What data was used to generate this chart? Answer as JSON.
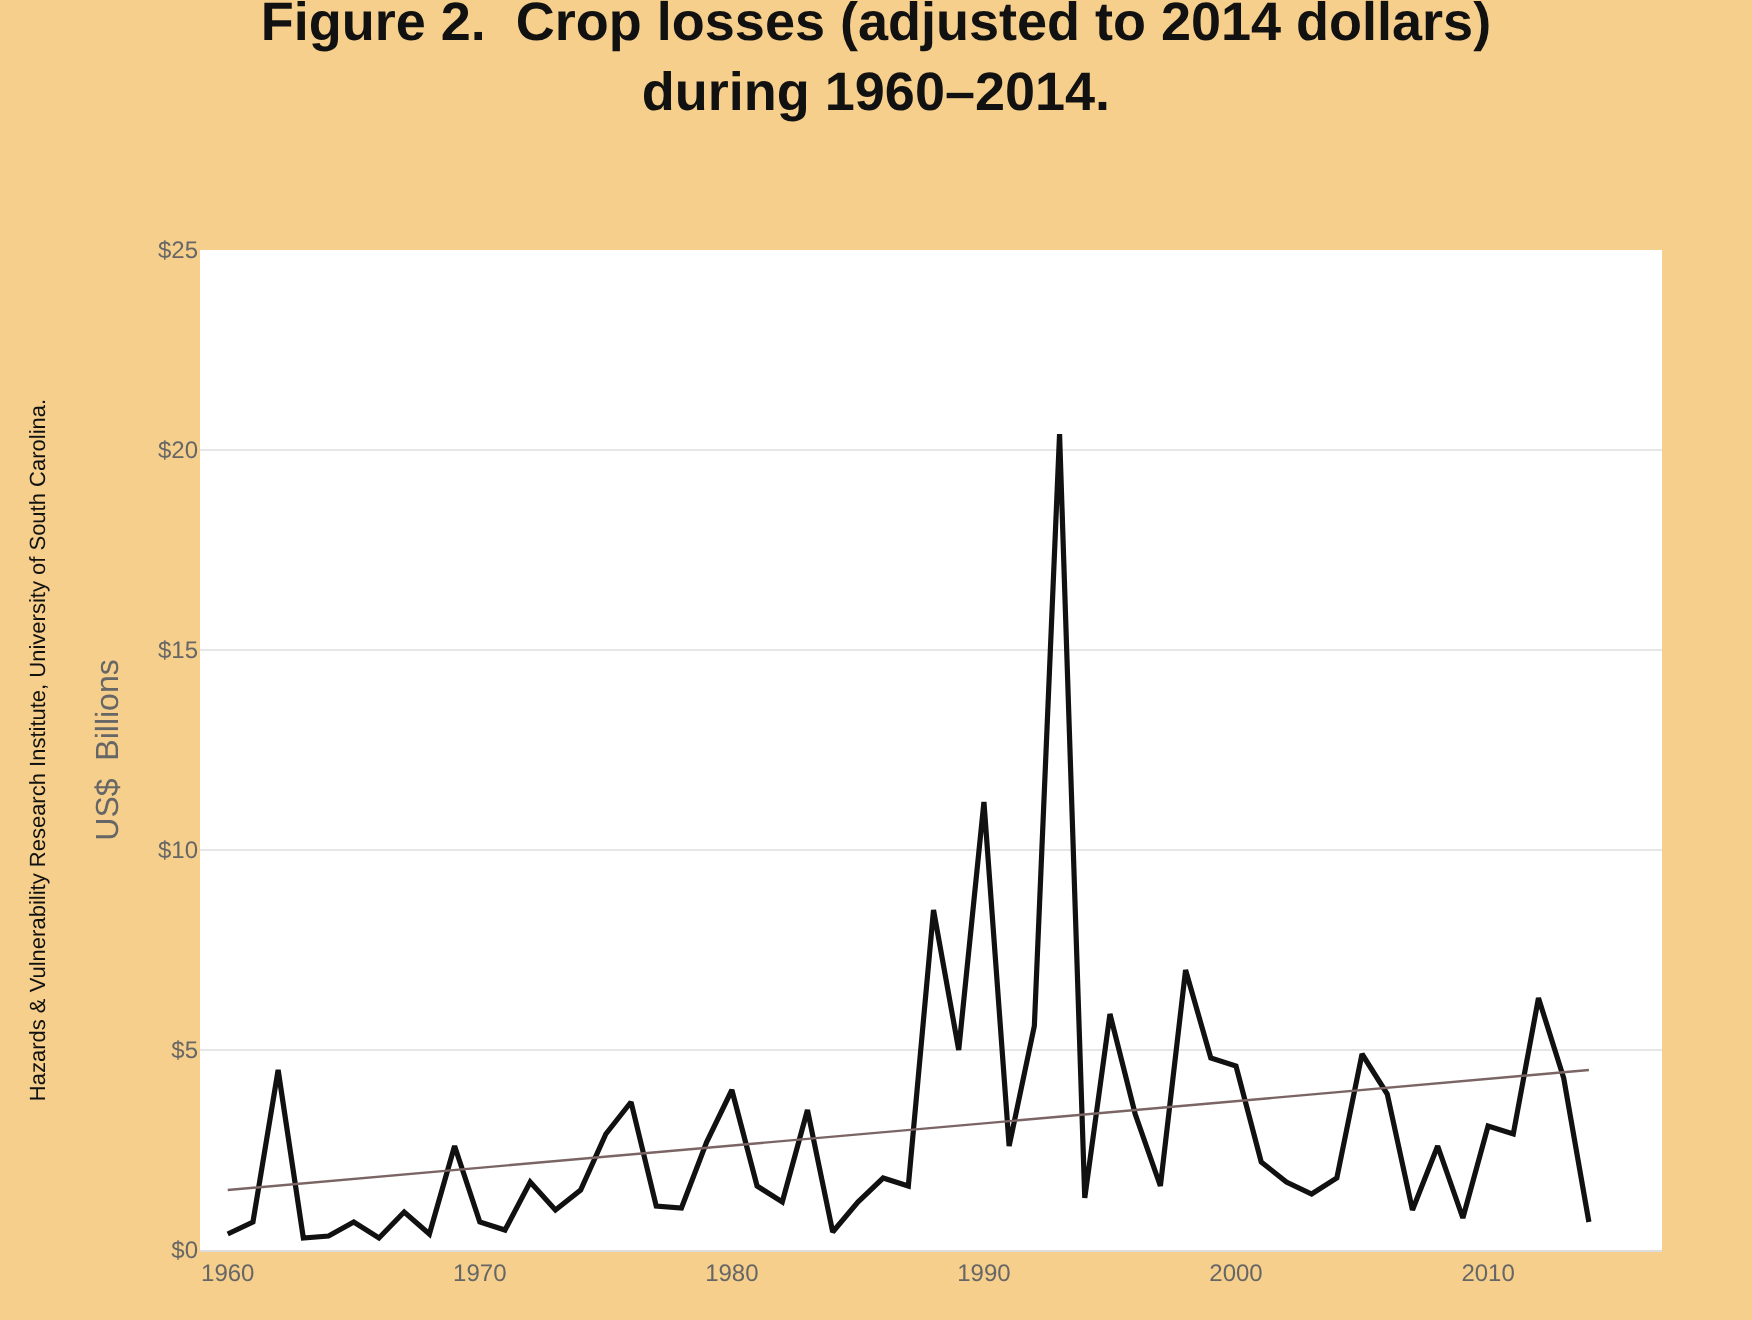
{
  "chart_data": {
    "type": "line",
    "title": "Figure 2.  Crop losses (adjusted to 2014 dollars)\nduring 1960–2014.",
    "ylabel": "US$  Billions",
    "annotations": [
      "Hazards & Vulnerability Research Institute, University of South Carolina."
    ],
    "x": [
      1960,
      1961,
      1962,
      1963,
      1964,
      1965,
      1966,
      1967,
      1968,
      1969,
      1970,
      1971,
      1972,
      1973,
      1974,
      1975,
      1976,
      1977,
      1978,
      1979,
      1980,
      1981,
      1982,
      1983,
      1984,
      1985,
      1986,
      1987,
      1988,
      1989,
      1990,
      1991,
      1992,
      1993,
      1994,
      1995,
      1996,
      1997,
      1998,
      1999,
      2000,
      2001,
      2002,
      2003,
      2004,
      2005,
      2006,
      2007,
      2008,
      2009,
      2010,
      2011,
      2012,
      2013,
      2014
    ],
    "series": [
      {
        "color": "#111111",
        "values": [
          0.4,
          0.7,
          4.5,
          0.3,
          0.35,
          0.7,
          0.3,
          0.95,
          0.4,
          2.6,
          0.7,
          0.5,
          1.7,
          1.0,
          1.5,
          2.9,
          3.7,
          1.1,
          1.05,
          2.7,
          4.0,
          1.6,
          1.2,
          3.5,
          0.45,
          1.2,
          1.8,
          1.6,
          8.5,
          5.0,
          11.2,
          2.6,
          5.6,
          20.4,
          1.3,
          5.9,
          3.4,
          1.6,
          7.0,
          4.8,
          4.6,
          2.2,
          1.7,
          1.4,
          1.8,
          4.9,
          3.9,
          1.0,
          2.6,
          0.8,
          3.1,
          2.9,
          6.3,
          4.3,
          0.7
        ]
      },
      {
        "type": "line",
        "color": "#7a6464",
        "x": [
          1960,
          2014
        ],
        "values": [
          1.5,
          4.5
        ]
      }
    ],
    "xlim": [
      1958.9,
      2016.9
    ],
    "xticks": [
      1960,
      1970,
      1980,
      1990,
      2000,
      2010
    ],
    "ylim": [
      0,
      25
    ],
    "yticks": [
      {
        "value": 0,
        "label": "$0"
      },
      {
        "value": 5,
        "label": "$5"
      },
      {
        "value": 10,
        "label": "$10"
      },
      {
        "value": 15,
        "label": "$15"
      },
      {
        "value": 20,
        "label": "$20"
      },
      {
        "value": 25,
        "label": "$25"
      }
    ],
    "grid": "y"
  }
}
